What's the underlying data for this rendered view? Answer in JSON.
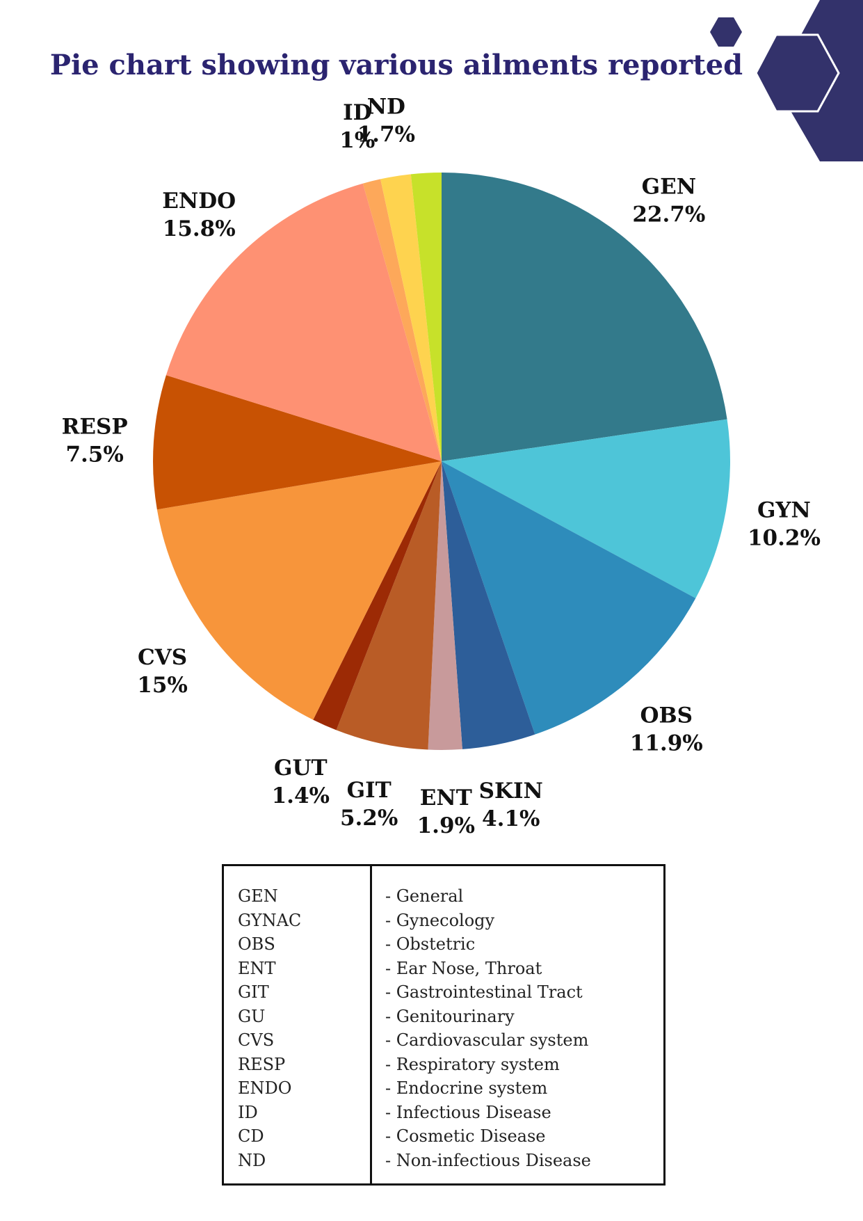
{
  "colors": {
    "title": "#2b2470",
    "decoration": "#33326b"
  },
  "chart_data": {
    "type": "pie",
    "title": "Pie chart showing various ailments reported",
    "slices": [
      {
        "label": "GEN",
        "value": 22.7,
        "display": "22.7%",
        "color": "#337a8b"
      },
      {
        "label": "GYN",
        "value": 10.2,
        "display": "10.2%",
        "color": "#4ec5d8"
      },
      {
        "label": "OBS",
        "value": 11.9,
        "display": "11.9%",
        "color": "#2e8cbb"
      },
      {
        "label": "SKIN",
        "value": 4.1,
        "display": "4.1%",
        "color": "#2d5e99"
      },
      {
        "label": "ENT",
        "value": 1.9,
        "display": "1.9%",
        "color": "#c89a9b"
      },
      {
        "label": "GIT",
        "value": 5.2,
        "display": "5.2%",
        "color": "#b95c26"
      },
      {
        "label": "GUT",
        "value": 1.4,
        "display": "1.4%",
        "color": "#9c2a05"
      },
      {
        "label": "CVS",
        "value": 15.0,
        "display": "15%",
        "color": "#f7953b"
      },
      {
        "label": "RESP",
        "value": 7.5,
        "display": "7.5%",
        "color": "#c85203"
      },
      {
        "label": "ENDO",
        "value": 15.8,
        "display": "15.8%",
        "color": "#fe9173"
      },
      {
        "label": "ID",
        "value": 1.0,
        "display": "1%",
        "color": "#fda85a"
      },
      {
        "label": "ND",
        "value": 1.7,
        "display": "1.7%",
        "color": "#fed34f"
      },
      {
        "label": "",
        "value": 1.7,
        "display": "",
        "color": "#c7e12a"
      }
    ]
  },
  "legend": {
    "items": [
      {
        "abbr": "GEN",
        "desc": "- General"
      },
      {
        "abbr": "GYNAC",
        "desc": "- Gynecology"
      },
      {
        "abbr": "OBS",
        "desc": "- Obstetric"
      },
      {
        "abbr": "ENT",
        "desc": "- Ear Nose, Throat"
      },
      {
        "abbr": "GIT",
        "desc": "- Gastrointestinal Tract"
      },
      {
        "abbr": "GU",
        "desc": "- Genitourinary"
      },
      {
        "abbr": "CVS",
        "desc": "- Cardiovascular system"
      },
      {
        "abbr": "RESP",
        "desc": "- Respiratory system"
      },
      {
        "abbr": "ENDO",
        "desc": "- Endocrine system"
      },
      {
        "abbr": "ID",
        "desc": "- Infectious Disease"
      },
      {
        "abbr": "CD",
        "desc": "- Cosmetic Disease"
      },
      {
        "abbr": "ND",
        "desc": "- Non-infectious Disease"
      }
    ]
  }
}
